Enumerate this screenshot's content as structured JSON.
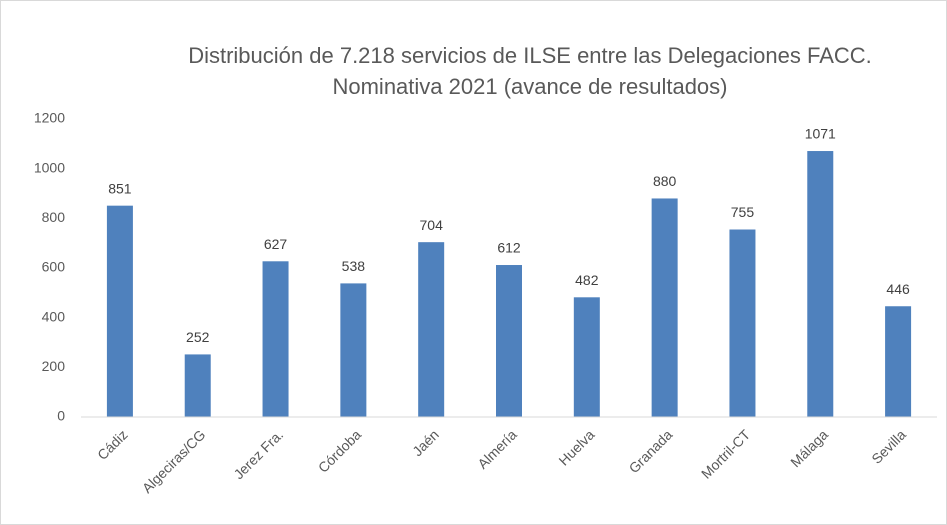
{
  "chart_data": {
    "type": "bar",
    "title": [
      "Distribución de 7.218 servicios de ILSE entre las Delegaciones FACC.",
      "Nominativa 2021 (avance de resultados)"
    ],
    "categories": [
      "Cádiz",
      "Algeciras/CG",
      "Jerez Fra.",
      "Córdoba",
      "Jaén",
      "Almería",
      "Huelva",
      "Granada",
      "Mortril-CT",
      "Málaga",
      "Sevilla"
    ],
    "values": [
      851,
      252,
      627,
      538,
      704,
      612,
      482,
      880,
      755,
      1071,
      446
    ],
    "color": "#4f81bd",
    "ylim": [
      0,
      1200
    ],
    "yticks": [
      0,
      200,
      400,
      600,
      800,
      1000,
      1200
    ],
    "grid": false
  }
}
